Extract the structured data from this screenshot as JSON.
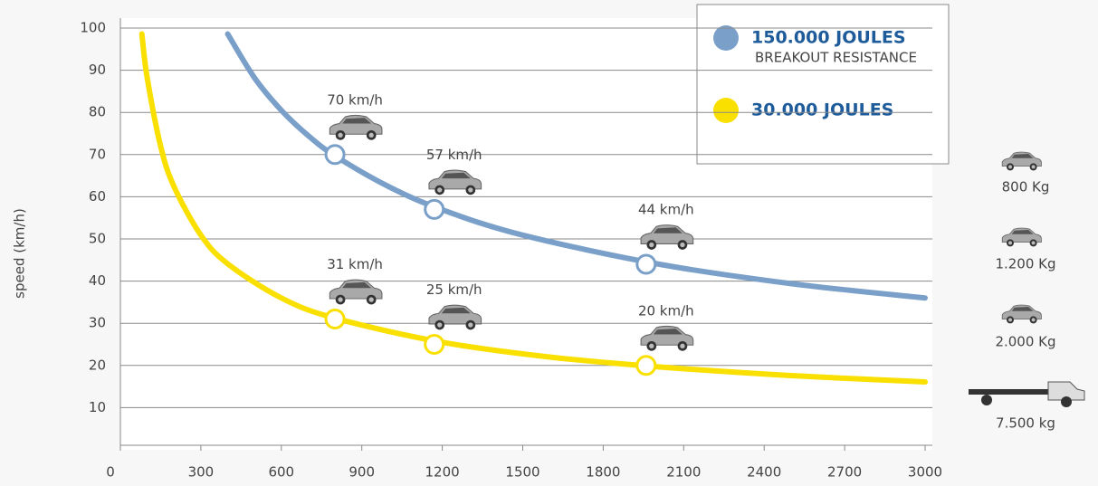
{
  "chart_data": {
    "type": "line",
    "y_label": "speed (km/h)",
    "xlim": [
      0,
      3000
    ],
    "xticks": [
      0,
      300,
      600,
      900,
      1200,
      1500,
      1800,
      2100,
      2400,
      2700,
      3000
    ],
    "ylim": [
      0,
      100
    ],
    "yticks": [
      10,
      20,
      30,
      40,
      50,
      60,
      70,
      80,
      90,
      100
    ],
    "grid": true,
    "legend": "upper right",
    "legend_note": "BREAKOUT RESISTANCE",
    "series": [
      {
        "name": "150.000 JOULES",
        "color": "#7aa0c9",
        "x": [
          400,
          500,
          600,
          700,
          800,
          1000,
          1200,
          1500,
          2000,
          2500,
          3000
        ],
        "values": [
          98.6,
          88.2,
          80.5,
          74.5,
          69.7,
          62.4,
          56.9,
          50.9,
          44.1,
          39.4,
          36
        ],
        "points": {
          "x": [
            800,
            1170,
            1960
          ],
          "values": [
            70,
            57,
            44
          ],
          "value_labels": [
            "70 km/h",
            "57 km/h",
            "44 km/h"
          ]
        }
      },
      {
        "name": "30.000 JOULES",
        "color": "#fae000",
        "x": [
          80,
          100,
          150,
          200,
          300,
          400,
          600,
          800,
          1200,
          1600,
          2000,
          2500,
          3000
        ],
        "values": [
          98.6,
          88.2,
          72,
          62.4,
          50.9,
          44.1,
          36,
          31.2,
          25.5,
          22,
          19.7,
          17.6,
          16.1
        ],
        "points": {
          "x": [
            800,
            1170,
            1960
          ],
          "values": [
            31,
            25,
            20
          ],
          "value_labels": [
            "31 km/h",
            "25 km/h",
            "20 km/h"
          ]
        }
      }
    ],
    "vehicles": [
      "800 Kg",
      "1.200 Kg",
      "2.000 Kg",
      "7.500 kg"
    ]
  }
}
